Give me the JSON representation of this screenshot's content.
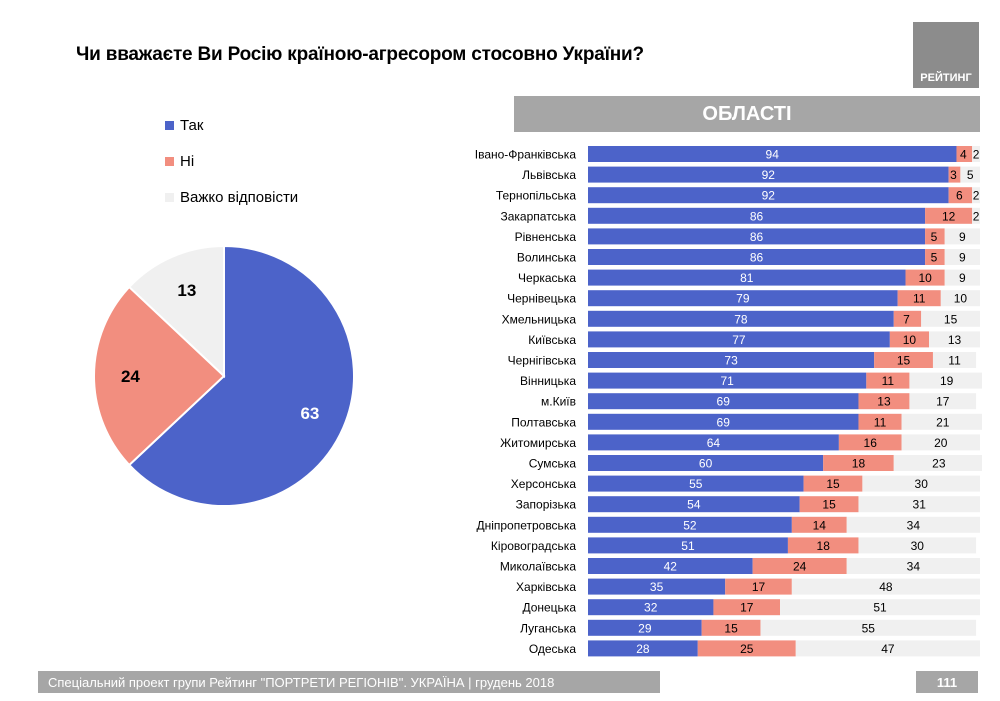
{
  "header": {
    "title": "Чи вважаєте Ви Росію країною-агресором стосовно України?",
    "brand": "РЕЙТИНГ",
    "section": "ОБЛАСТІ"
  },
  "colors": {
    "yes": "#4c63c9",
    "no": "#f28e7f",
    "hard": "#f0f0f0"
  },
  "chart_data": [
    {
      "type": "pie",
      "legend": [
        "Так",
        "Ні",
        "Важко відповісти"
      ],
      "values": [
        63,
        24,
        13
      ]
    },
    {
      "type": "bar",
      "stacked": true,
      "orientation": "horizontal",
      "categories": [
        "Івано-Франківська",
        "Львівська",
        "Тернопільська",
        "Закарпатська",
        "Рівненська",
        "Волинська",
        "Черкаська",
        "Чернівецька",
        "Хмельницька",
        "Київська",
        "Чернігівська",
        "Вінницька",
        "м.Київ",
        "Полтавська",
        "Житомирська",
        "Сумська",
        "Херсонська",
        "Запорізька",
        "Дніпропетровська",
        "Кіровоградська",
        "Миколаївська",
        "Харківська",
        "Донецька",
        "Луганська",
        "Одеська"
      ],
      "series": [
        {
          "values": [
            94,
            92,
            92,
            86,
            86,
            86,
            81,
            79,
            78,
            77,
            73,
            71,
            69,
            69,
            64,
            60,
            55,
            54,
            52,
            51,
            42,
            35,
            32,
            29,
            28
          ]
        },
        {
          "values": [
            4,
            3,
            6,
            12,
            5,
            5,
            10,
            11,
            7,
            10,
            15,
            11,
            13,
            11,
            16,
            18,
            15,
            15,
            14,
            18,
            24,
            17,
            17,
            15,
            25
          ]
        },
        {
          "values": [
            2,
            5,
            2,
            2,
            9,
            9,
            9,
            10,
            15,
            13,
            11,
            19,
            17,
            21,
            20,
            23,
            30,
            31,
            34,
            30,
            34,
            48,
            51,
            55,
            47
          ]
        }
      ]
    }
  ],
  "footer": {
    "text": "Спеціальний проект групи Рейтинг \"ПОРТРЕТИ РЕГІОНІВ\". УКРАЇНА | грудень 2018",
    "page": "111"
  }
}
